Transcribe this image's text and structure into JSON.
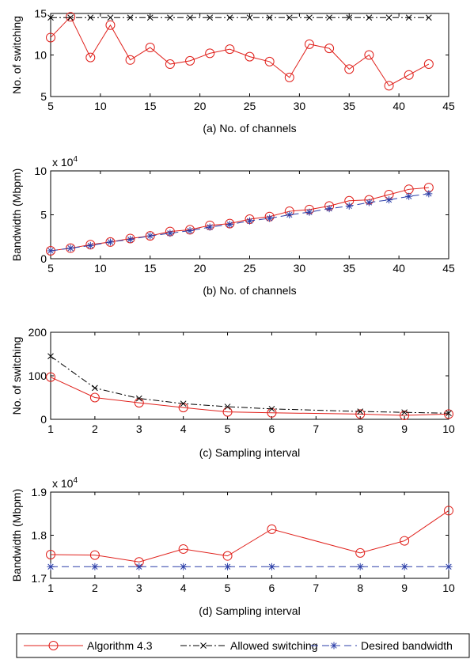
{
  "chart_data": [
    {
      "type": "line",
      "caption": "(a) No. of channels",
      "xlabel": "",
      "ylabel": "No. of switching",
      "xlim": [
        5,
        45
      ],
      "ylim": [
        5,
        15
      ],
      "xticks": [
        5,
        10,
        15,
        20,
        25,
        30,
        35,
        40,
        45
      ],
      "yticks": [
        5,
        10,
        15
      ],
      "multiplier": "",
      "x": [
        5,
        7,
        9,
        11,
        13,
        15,
        17,
        19,
        21,
        23,
        25,
        27,
        29,
        31,
        33,
        35,
        37,
        39,
        41,
        43
      ],
      "series": [
        {
          "name": "Algorithm 4.3",
          "color": "#e0201b",
          "dash": "",
          "marker": "circle",
          "values": [
            12.1,
            14.6,
            9.7,
            13.6,
            9.4,
            10.9,
            8.9,
            9.3,
            10.2,
            10.7,
            9.8,
            9.2,
            7.3,
            11.3,
            10.8,
            8.3,
            10.0,
            6.3,
            7.6,
            8.9
          ]
        },
        {
          "name": "Allowed switching",
          "color": "#000000",
          "dash": "8,3,2,3",
          "marker": "x",
          "values": [
            14.5,
            14.5,
            14.5,
            14.5,
            14.5,
            14.5,
            14.5,
            14.5,
            14.5,
            14.5,
            14.5,
            14.5,
            14.5,
            14.5,
            14.5,
            14.5,
            14.5,
            14.5,
            14.5,
            14.5
          ]
        }
      ]
    },
    {
      "type": "line",
      "caption": "(b) No. of channels",
      "xlabel": "",
      "ylabel": "Bandwidth (Mbpm)",
      "xlim": [
        5,
        45
      ],
      "ylim": [
        0,
        10
      ],
      "xticks": [
        5,
        10,
        15,
        20,
        25,
        30,
        35,
        40,
        45
      ],
      "yticks": [
        0,
        5,
        10
      ],
      "multiplier": "x 10",
      "multiplier_exp": "4",
      "x": [
        5,
        7,
        9,
        11,
        13,
        15,
        17,
        19,
        21,
        23,
        25,
        27,
        29,
        31,
        33,
        35,
        37,
        39,
        41,
        43
      ],
      "series": [
        {
          "name": "Algorithm 4.3",
          "color": "#e0201b",
          "dash": "",
          "marker": "circle",
          "values": [
            0.9,
            1.2,
            1.6,
            1.9,
            2.3,
            2.6,
            3.1,
            3.3,
            3.8,
            4.0,
            4.5,
            4.8,
            5.4,
            5.6,
            6.0,
            6.6,
            6.7,
            7.3,
            7.9,
            8.1
          ]
        },
        {
          "name": "Desired bandwidth",
          "color": "#2b3ea8",
          "dash": "9,5",
          "marker": "star",
          "values": [
            0.9,
            1.2,
            1.5,
            1.9,
            2.2,
            2.6,
            2.9,
            3.2,
            3.6,
            3.9,
            4.3,
            4.6,
            5.0,
            5.3,
            5.7,
            6.0,
            6.4,
            6.7,
            7.1,
            7.4
          ]
        }
      ]
    },
    {
      "type": "line",
      "caption": "(c) Sampling interval",
      "xlabel": "",
      "ylabel": "No. of switching",
      "xlim": [
        1,
        10
      ],
      "ylim": [
        0,
        200
      ],
      "xticks": [
        1,
        2,
        3,
        4,
        5,
        6,
        7,
        8,
        9,
        10
      ],
      "yticks": [
        0,
        100,
        200
      ],
      "multiplier": "",
      "x": [
        1,
        2,
        3,
        4,
        5,
        6,
        8,
        9,
        10
      ],
      "series": [
        {
          "name": "Algorithm 4.3",
          "color": "#e0201b",
          "dash": "",
          "marker": "circle",
          "values": [
            97,
            50,
            38,
            27,
            17,
            15,
            12,
            9,
            12
          ]
        },
        {
          "name": "Allowed switching",
          "color": "#000000",
          "dash": "8,3,2,3",
          "marker": "x",
          "values": [
            145,
            72,
            48,
            36,
            29,
            24,
            18,
            16,
            14
          ]
        }
      ]
    },
    {
      "type": "line",
      "caption": "(d) Sampling interval",
      "xlabel": "",
      "ylabel": "Bandwidth (Mbpm)",
      "xlim": [
        1,
        10
      ],
      "ylim": [
        1.7,
        1.9
      ],
      "xticks": [
        1,
        2,
        3,
        4,
        5,
        6,
        7,
        8,
        9,
        10
      ],
      "yticks": [
        1.7,
        1.8,
        1.9
      ],
      "multiplier": "x 10",
      "multiplier_exp": "4",
      "x": [
        1,
        2,
        3,
        4,
        5,
        6,
        8,
        9,
        10
      ],
      "series": [
        {
          "name": "Algorithm 4.3",
          "color": "#e0201b",
          "dash": "",
          "marker": "circle",
          "values": [
            1.755,
            1.754,
            1.738,
            1.768,
            1.752,
            1.814,
            1.759,
            1.787,
            1.857
          ]
        },
        {
          "name": "Desired bandwidth",
          "color": "#2b3ea8",
          "dash": "9,5",
          "marker": "star",
          "values": [
            1.727,
            1.727,
            1.727,
            1.727,
            1.727,
            1.727,
            1.727,
            1.727,
            1.727
          ]
        }
      ]
    }
  ],
  "legend": {
    "placement": "bottom",
    "entries": [
      {
        "label": "Algorithm 4.3",
        "color": "#e0201b",
        "dash": "",
        "marker": "circle"
      },
      {
        "label": "Allowed switching",
        "color": "#000000",
        "dash": "8,3,2,3",
        "marker": "x"
      },
      {
        "label": "Desired bandwidth",
        "color": "#2b3ea8",
        "dash": "9,5",
        "marker": "star"
      }
    ]
  }
}
